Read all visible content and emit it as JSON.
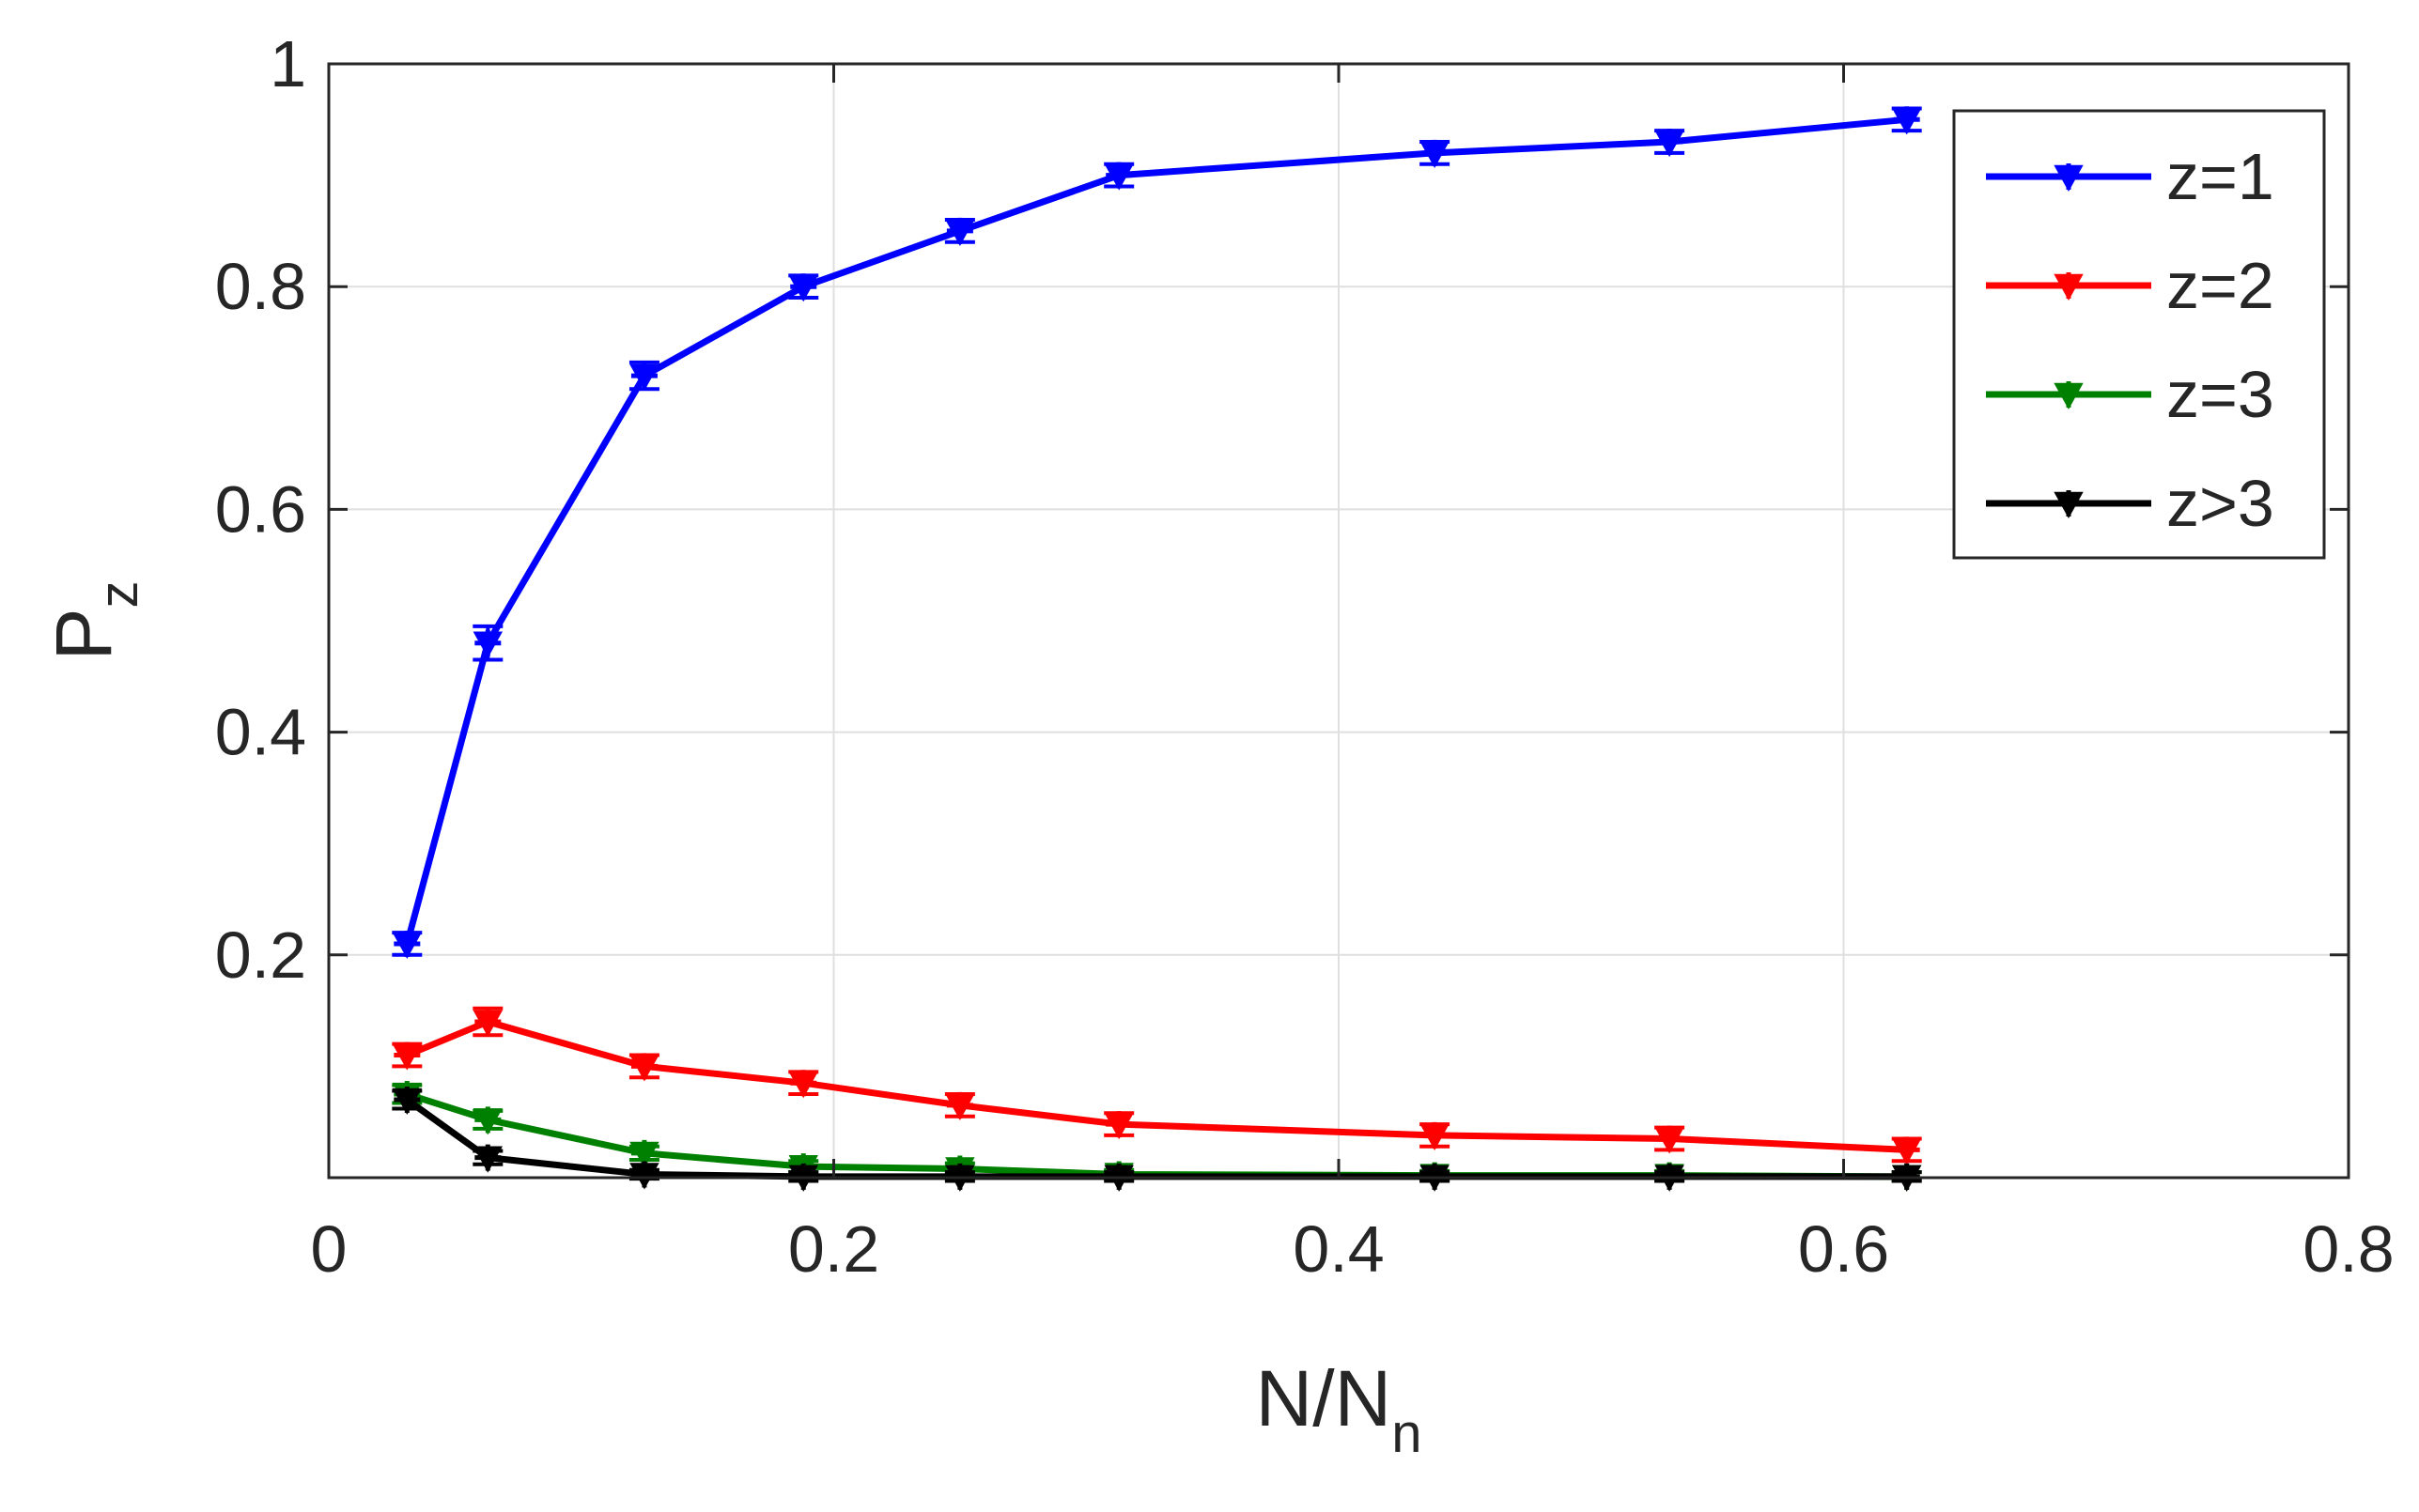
{
  "chart_data": {
    "type": "line",
    "title": "",
    "xlabel": {
      "main": "N/N",
      "sub": "n"
    },
    "ylabel": {
      "main": "P",
      "sub": "z"
    },
    "xlim": [
      0,
      0.8
    ],
    "ylim": [
      0,
      1
    ],
    "xticks": [
      0,
      0.2,
      0.4,
      0.6,
      0.8
    ],
    "xtick_labels": [
      "0",
      "0.2",
      "0.4",
      "0.6",
      "0.8"
    ],
    "yticks": [
      0.2,
      0.4,
      0.6,
      0.8,
      1
    ],
    "ytick_labels": [
      "0.2",
      "0.4",
      "0.6",
      "0.8",
      "1"
    ],
    "grid": true,
    "legend_position": "top-right",
    "x": [
      0.031,
      0.063,
      0.125,
      0.188,
      0.25,
      0.313,
      0.438,
      0.531,
      0.625
    ],
    "series": [
      {
        "name": "z=1",
        "color": "#0000ff",
        "values": [
          0.21,
          0.48,
          0.72,
          0.8,
          0.85,
          0.9,
          0.92,
          0.93,
          0.95
        ],
        "errors": [
          0.01,
          0.015,
          0.012,
          0.01,
          0.01,
          0.01,
          0.01,
          0.01,
          0.01
        ]
      },
      {
        "name": "z=2",
        "color": "#ff0000",
        "values": [
          0.11,
          0.14,
          0.1,
          0.085,
          0.065,
          0.048,
          0.038,
          0.035,
          0.025
        ],
        "errors": [
          0.01,
          0.012,
          0.01,
          0.01,
          0.01,
          0.01,
          0.01,
          0.01,
          0.01
        ]
      },
      {
        "name": "z=3",
        "color": "#008000",
        "values": [
          0.075,
          0.052,
          0.022,
          0.01,
          0.008,
          0.003,
          0.002,
          0.002,
          0.001
        ],
        "errors": [
          0.008,
          0.008,
          0.006,
          0.005,
          0.005,
          0.004,
          0.004,
          0.004,
          0.004
        ]
      },
      {
        "name": "z>3",
        "color": "#000000",
        "values": [
          0.07,
          0.018,
          0.003,
          0.001,
          0.001,
          0.001,
          0.001,
          0.001,
          0.001
        ],
        "errors": [
          0.008,
          0.006,
          0.004,
          0.004,
          0.004,
          0.004,
          0.004,
          0.004,
          0.004
        ]
      }
    ]
  }
}
